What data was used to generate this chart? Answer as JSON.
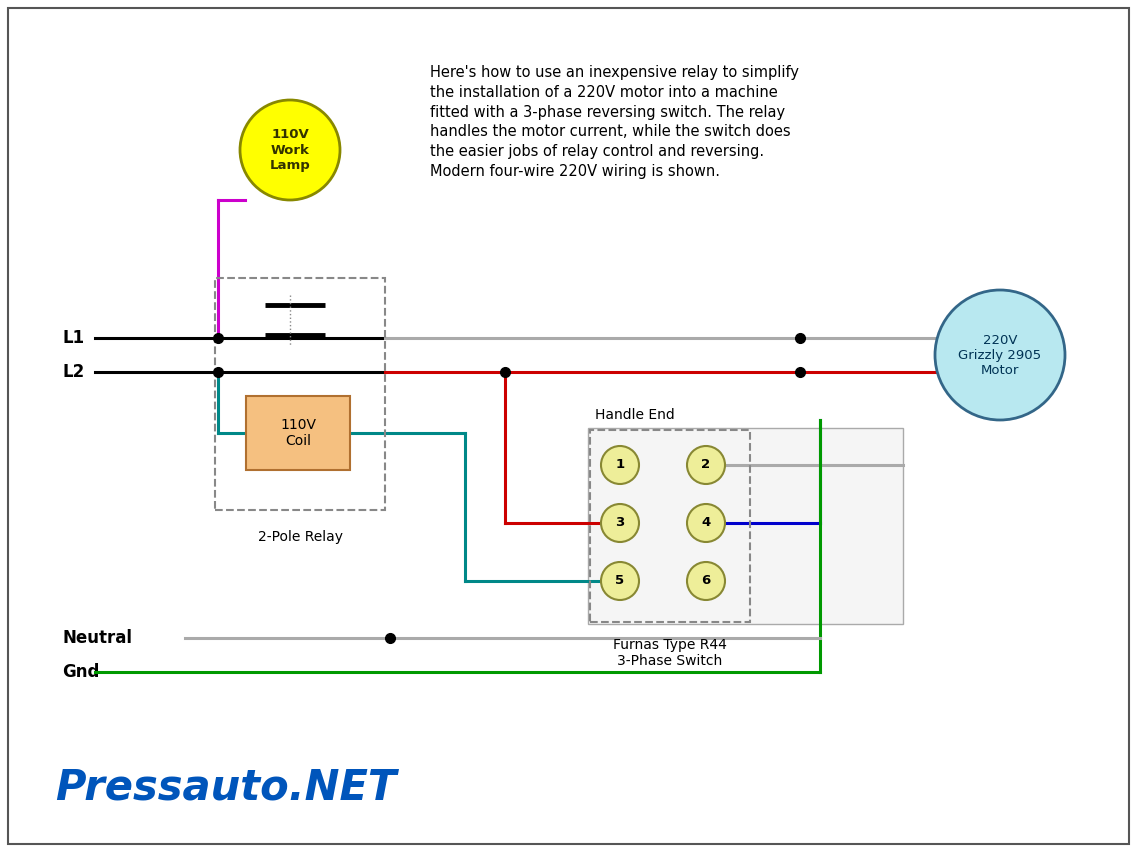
{
  "bg_color": "#ffffff",
  "title_text": "Pressauto.NET",
  "title_color": "#0055bb",
  "description": "Here's how to use an inexpensive relay to simplify\nthe installation of a 220V motor into a machine\nfitted with a 3-phase reversing switch. The relay\nhandles the motor current, while the switch does\nthe easier jobs of relay control and reversing.\nModern four-wire 220V wiring is shown.",
  "lamp_circle_color": "#ffff00",
  "lamp_circle_edge": "#888800",
  "lamp_text": "110V\nWork\nLamp",
  "motor_circle_color": "#b8e8f0",
  "motor_circle_edge": "#336688",
  "motor_text": "220V\nGrizzly 2905\nMotor",
  "coil_box_color": "#f5c080",
  "coil_box_edge": "#b07030",
  "coil_text": "110V\nCoil",
  "relay_dash_color": "#888888",
  "wire_black": "#000000",
  "wire_gray": "#aaaaaa",
  "wire_red": "#cc0000",
  "wire_blue": "#0000cc",
  "wire_green": "#009900",
  "wire_teal": "#008888",
  "wire_magenta": "#cc00cc",
  "switch_node_color": "#eeee99",
  "switch_node_edge": "#888833",
  "border_color": "#555555"
}
